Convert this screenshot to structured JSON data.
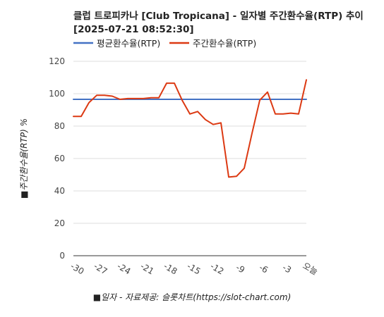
{
  "chart_data": {
    "type": "line",
    "title_line1": "클럽 트로피카나 [Club Tropicana] - 일자별 주간환수율(RTP) 추이",
    "title_line2": "[2025-07-21 08:52:30]",
    "xlabel": "■일자 - 자료제공: 슬롯차트(https://slot-chart.com)",
    "ylabel": "■주간환수율(RTP) %",
    "ylim": [
      0,
      120
    ],
    "yticks": [
      0,
      20,
      40,
      60,
      80,
      100,
      120
    ],
    "x": [
      -30,
      -29,
      -28,
      -27,
      -26,
      -25,
      -24,
      -23,
      -22,
      -21,
      -20,
      -19,
      -18,
      -17,
      -16,
      -15,
      -14,
      -13,
      -12,
      -11,
      -10,
      -9,
      -8,
      -7,
      -6,
      -5,
      -4,
      -3,
      -2,
      -1,
      0
    ],
    "xtick_values": [
      -30,
      -27,
      -24,
      -21,
      -18,
      -15,
      -12,
      -9,
      -6,
      -3,
      0
    ],
    "xtick_labels": [
      "-30",
      "-27",
      "-24",
      "-21",
      "-18",
      "-15",
      "-12",
      "-9",
      "-6",
      "-3",
      "오늘"
    ],
    "grid": true,
    "legend_position": "top-left",
    "series": [
      {
        "name": "평균환수율(RTP)",
        "color": "#4472C4",
        "values": [
          96.5,
          96.5,
          96.5,
          96.5,
          96.5,
          96.5,
          96.5,
          96.5,
          96.5,
          96.5,
          96.5,
          96.5,
          96.5,
          96.5,
          96.5,
          96.5,
          96.5,
          96.5,
          96.5,
          96.5,
          96.5,
          96.5,
          96.5,
          96.5,
          96.5,
          96.5,
          96.5,
          96.5,
          96.5,
          96.5,
          96.5
        ]
      },
      {
        "name": "주간환수율(RTP)",
        "color": "#DC3912",
        "values": [
          86,
          86,
          94.5,
          99,
          99,
          98.5,
          96.5,
          97,
          97,
          97,
          97.5,
          97.5,
          106.5,
          106.5,
          96,
          87.5,
          89,
          84,
          81,
          82,
          48.5,
          49,
          54,
          75.5,
          96,
          101,
          87.5,
          87.5,
          88,
          87.5,
          108.5
        ]
      }
    ]
  }
}
